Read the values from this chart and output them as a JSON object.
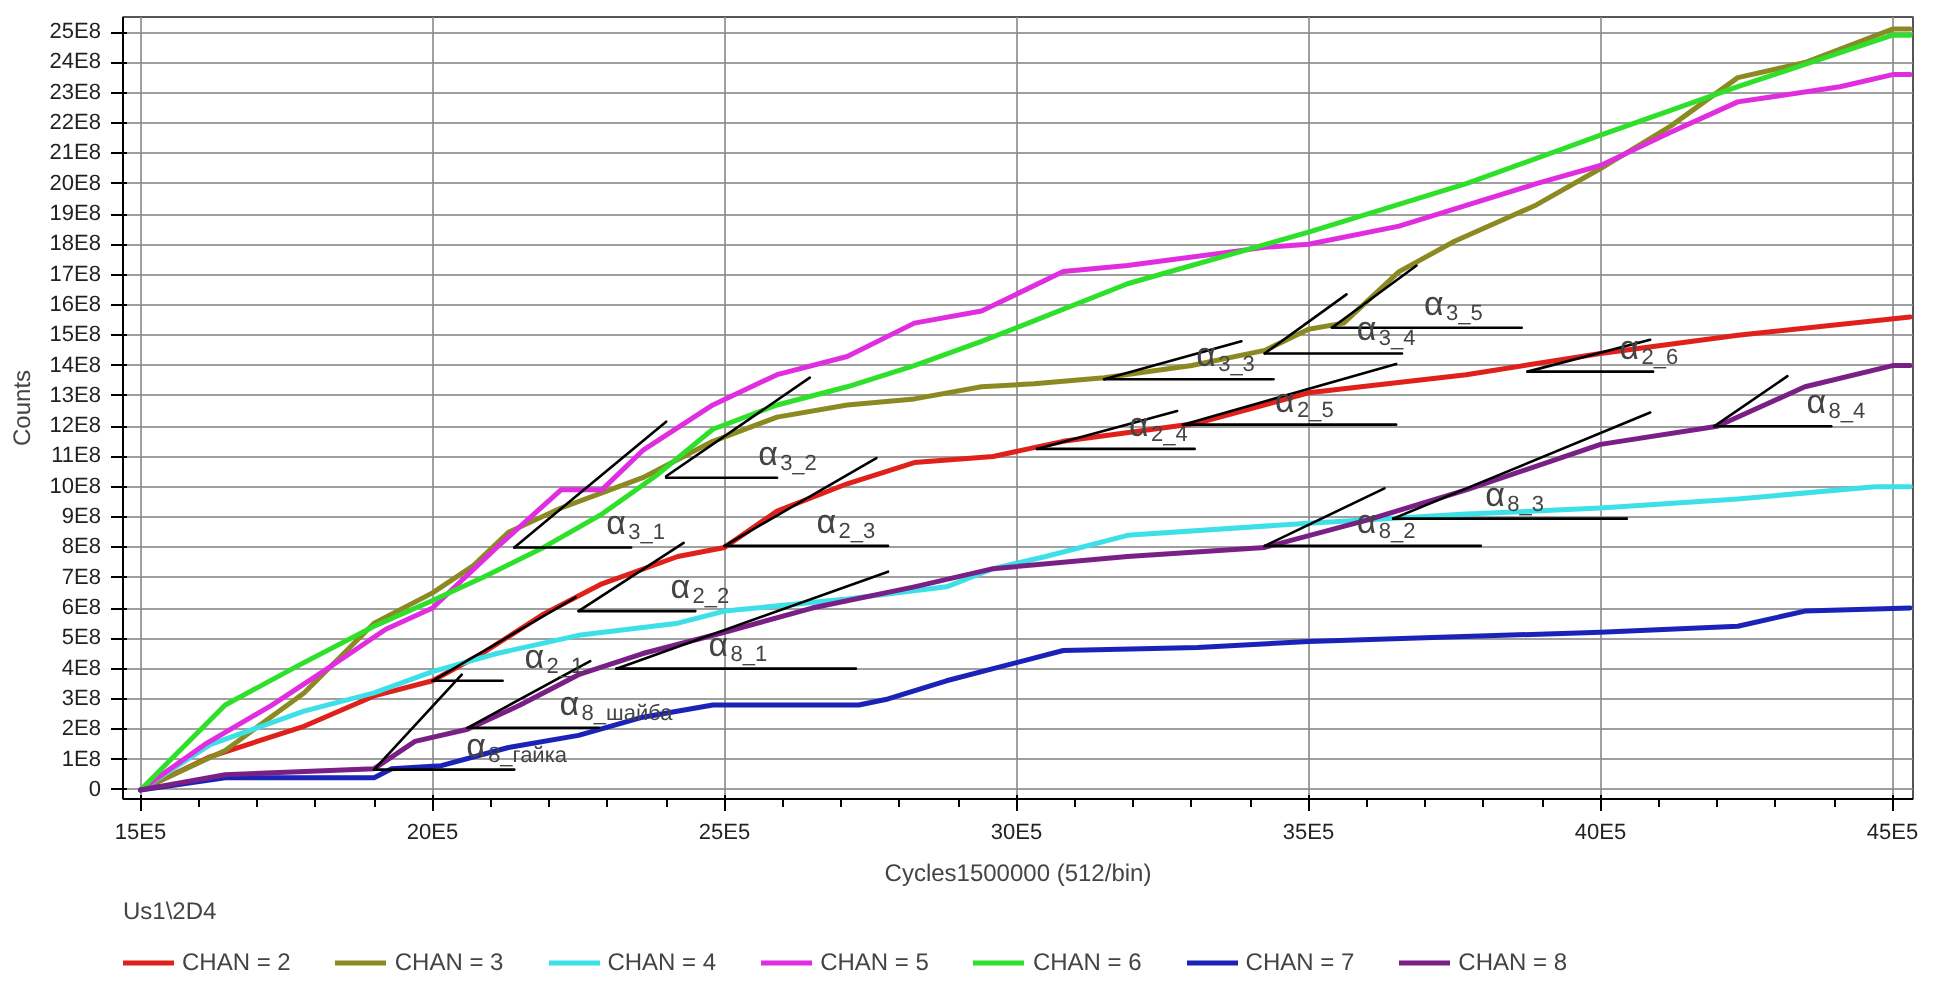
{
  "chart_data": {
    "type": "line",
    "xlabel": "Cycles1500000 (512/bin)",
    "ylabel": "Counts",
    "annotations": [
      "Us1\\2D4",
      {
        "text": "α$_{3_1}$",
        "x": 2140000.0,
        "y": 800000000.0
      },
      {
        "text": "α$_{3_2}$",
        "x": 2400000.0,
        "y": 1030000000.0
      },
      {
        "text": "α$_{2_3}$",
        "x": 2500000.0,
        "y": 805000000.0
      },
      {
        "text": "α$_{2_2}$",
        "x": 2250000.0,
        "y": 590000000.0
      },
      {
        "text": "α$_{2_1}$",
        "x": 2000000.0,
        "y": 360000000.0
      },
      {
        "text": "α$_{8_шайба}$",
        "x": 2060000.0,
        "y": 205000000.0
      },
      {
        "text": "α$_{8_гайка}$",
        "x": 1900000.0,
        "y": 67000000.0
      },
      {
        "text": "α$_{8_1}$",
        "x": 2315000.0,
        "y": 400000000.0
      },
      {
        "text": "α$_{3_3}$",
        "x": 3150000.0,
        "y": 1355000000.0
      },
      {
        "text": "α$_{3_4}$",
        "x": 3425000.0,
        "y": 1440000000.0
      },
      {
        "text": "α$_{3_5}$",
        "x": 3540000.0,
        "y": 1525000000.0
      },
      {
        "text": "α$_{2_4}$",
        "x": 3035000.0,
        "y": 1125000000.0
      },
      {
        "text": "α$_{2_5}$",
        "x": 3285000.0,
        "y": 1205000000.0
      },
      {
        "text": "α$_{2_6}$",
        "x": 3875000.0,
        "y": 1380000000.0
      },
      {
        "text": "α$_{8_2}$",
        "x": 3425000.0,
        "y": 805000000.0
      },
      {
        "text": "α$_{8_3}$",
        "x": 3645000.0,
        "y": 895000000.0
      },
      {
        "text": "α$_{8_4}$",
        "x": 4195000.0,
        "y": 1200000000.0
      }
    ],
    "xlim": [
      1470000.0,
      4535000.0
    ],
    "ylim": [
      -30000000.0,
      2550000000.0
    ],
    "xticks": [
      {
        "value": 1500000.0,
        "label": "15E5"
      },
      {
        "value": 1600000.0,
        "label": null
      },
      {
        "value": 1700000.0,
        "label": null
      },
      {
        "value": 1800000.0,
        "label": null
      },
      {
        "value": 1900000.0,
        "label": null
      },
      {
        "value": 2000000.0,
        "label": "20E5"
      },
      {
        "value": 2100000.0,
        "label": null
      },
      {
        "value": 2200000.0,
        "label": null
      },
      {
        "value": 2300000.0,
        "label": null
      },
      {
        "value": 2400000.0,
        "label": null
      },
      {
        "value": 2500000.0,
        "label": "25E5"
      },
      {
        "value": 2600000.0,
        "label": null
      },
      {
        "value": 2700000.0,
        "label": null
      },
      {
        "value": 2800000.0,
        "label": null
      },
      {
        "value": 2900000.0,
        "label": null
      },
      {
        "value": 3000000.0,
        "label": "30E5"
      },
      {
        "value": 3100000.0,
        "label": null
      },
      {
        "value": 3200000.0,
        "label": null
      },
      {
        "value": 3300000.0,
        "label": null
      },
      {
        "value": 3400000.0,
        "label": null
      },
      {
        "value": 3500000.0,
        "label": "35E5"
      },
      {
        "value": 3600000.0,
        "label": null
      },
      {
        "value": 3700000.0,
        "label": null
      },
      {
        "value": 3800000.0,
        "label": null
      },
      {
        "value": 3900000.0,
        "label": null
      },
      {
        "value": 4000000.0,
        "label": "40E5"
      },
      {
        "value": 4100000.0,
        "label": null
      },
      {
        "value": 4200000.0,
        "label": null
      },
      {
        "value": 4300000.0,
        "label": null
      },
      {
        "value": 4400000.0,
        "label": null
      },
      {
        "value": 4500000.0,
        "label": "45E5"
      }
    ],
    "yticks": [
      0,
      {
        "value": 100000000.0,
        "label": "1E8"
      },
      {
        "value": 200000000.0,
        "label": "2E8"
      },
      {
        "value": 300000000.0,
        "label": "3E8"
      },
      {
        "value": 400000000.0,
        "label": "4E8"
      },
      {
        "value": 500000000.0,
        "label": "5E8"
      },
      {
        "value": 600000000.0,
        "label": "6E8"
      },
      {
        "value": 700000000.0,
        "label": "7E8"
      },
      {
        "value": 800000000.0,
        "label": "8E8"
      },
      {
        "value": 900000000.0,
        "label": "9E8"
      },
      {
        "value": 1000000000.0,
        "label": "10E8"
      },
      {
        "value": 1100000000.0,
        "label": "11E8"
      },
      {
        "value": 1200000000.0,
        "label": "12E8"
      },
      {
        "value": 1300000000.0,
        "label": "13E8"
      },
      {
        "value": 1400000000.0,
        "label": "14E8"
      },
      {
        "value": 1500000000.0,
        "label": "15E8"
      },
      {
        "value": 1600000000.0,
        "label": "16E8"
      },
      {
        "value": 1700000000.0,
        "label": "17E8"
      },
      {
        "value": 1800000000.0,
        "label": "18E8"
      },
      {
        "value": 1900000000.0,
        "label": "19E8"
      },
      {
        "value": 2000000000.0,
        "label": "20E8"
      },
      {
        "value": 2100000000.0,
        "label": "21E8"
      },
      {
        "value": 2200000000.0,
        "label": "22E8"
      },
      {
        "value": 2300000000.0,
        "label": "23E8"
      },
      {
        "value": 2400000000.0,
        "label": "24E8"
      },
      {
        "value": 2500000000.0,
        "label": "25E8"
      }
    ],
    "grid": true,
    "legend": "bottom",
    "marker": "none",
    "line_style": "solid",
    "series": [
      {
        "name": "CHAN = 2",
        "color": "#e0201b",
        "x": [
          1500000.0,
          1620000.0,
          1780000.0,
          1900000.0,
          2000000.0,
          2085000.0,
          2190000.0,
          2290000.0,
          2420000.0,
          2500000.0,
          2590000.0,
          2710000.0,
          2825000.0,
          2960000.0,
          3080000.0,
          3310000.0,
          3500000.0,
          3770000.0,
          4000000.0,
          4235000.0,
          4530000.0
        ],
        "values": [
          0,
          110000000.0,
          210000000.0,
          310000000.0,
          360000000.0,
          450000000.0,
          580000000.0,
          680000000.0,
          770000000.0,
          800000000.0,
          920000000.0,
          1010000000.0,
          1080000000.0,
          1100000000.0,
          1150000000.0,
          1210000000.0,
          1310000000.0,
          1370000000.0,
          1440000000.0,
          1500000000.0,
          1560000000.0
        ]
      },
      {
        "name": "CHAN = 3",
        "color": "#8b8a22",
        "x": [
          1500000.0,
          1645000.0,
          1780000.0,
          1900000.0,
          2000000.0,
          2070000.0,
          2130000.0,
          2220000.0,
          2290000.0,
          2360000.0,
          2480000.0,
          2590000.0,
          2710000.0,
          2825000.0,
          2940000.0,
          3030000.0,
          3150000.0,
          3300000.0,
          3425000.0,
          3500000.0,
          3560000.0,
          3655000.0,
          3750000.0,
          3890000.0,
          4000000.0,
          4120000.0,
          4235000.0,
          4350000.0,
          4500000.0,
          4530000.0
        ],
        "values": [
          0,
          130000000.0,
          320000000.0,
          550000000.0,
          650000000.0,
          740000000.0,
          850000000.0,
          930000000.0,
          980000000.0,
          1030000000.0,
          1150000000.0,
          1230000000.0,
          1270000000.0,
          1290000000.0,
          1330000000.0,
          1340000000.0,
          1360000000.0,
          1400000000.0,
          1450000000.0,
          1520000000.0,
          1540000000.0,
          1710000000.0,
          1810000000.0,
          1930000000.0,
          2050000000.0,
          2190000000.0,
          2350000000.0,
          2400000000.0,
          2510000000.0,
          2510000000.0
        ]
      },
      {
        "name": "CHAN = 4",
        "color": "#3ee0e8",
        "x": [
          1500000.0,
          1620000.0,
          1780000.0,
          1900000.0,
          2000000.0,
          2110000.0,
          2250000.0,
          2420000.0,
          2500000.0,
          2710000.0,
          2880000.0,
          2960000.0,
          3050000.0,
          3190000.0,
          3500000.0,
          3770000.0,
          4000000.0,
          4235000.0,
          4470000.0,
          4530000.0
        ],
        "values": [
          0,
          150000000.0,
          260000000.0,
          320000000.0,
          390000000.0,
          450000000.0,
          510000000.0,
          550000000.0,
          590000000.0,
          630000000.0,
          670000000.0,
          730000000.0,
          770000000.0,
          840000000.0,
          880000000.0,
          910000000.0,
          930000000.0,
          960000000.0,
          1000000000.0,
          1000000000.0
        ]
      },
      {
        "name": "CHAN = 5",
        "color": "#e02de0",
        "x": [
          1500000.0,
          1610000.0,
          1725000.0,
          1820000.0,
          1920000.0,
          2000000.0,
          2110000.0,
          2220000.0,
          2290000.0,
          2360000.0,
          2480000.0,
          2590000.0,
          2710000.0,
          2825000.0,
          2940000.0,
          3080000.0,
          3190000.0,
          3425000.0,
          3500000.0,
          3655000.0,
          3890000.0,
          4000000.0,
          4120000.0,
          4235000.0,
          4410000.0,
          4500000.0,
          4530000.0
        ],
        "values": [
          0,
          150000000.0,
          280000000.0,
          400000000.0,
          530000000.0,
          600000000.0,
          800000000.0,
          990000000.0,
          990000000.0,
          1120000000.0,
          1270000000.0,
          1370000000.0,
          1430000000.0,
          1540000000.0,
          1580000000.0,
          1710000000.0,
          1730000000.0,
          1790000000.0,
          1800000000.0,
          1860000000.0,
          2000000000.0,
          2060000000.0,
          2170000000.0,
          2270000000.0,
          2320000000.0,
          2360000000.0,
          2360000000.0
        ]
      },
      {
        "name": "CHAN = 6",
        "color": "#2ee02a",
        "x": [
          1500000.0,
          1645000.0,
          1770000.0,
          1900000.0,
          2000000.0,
          2085000.0,
          2190000.0,
          2290000.0,
          2385000.0,
          2480000.0,
          2590000.0,
          2710000.0,
          2825000.0,
          2940000.0,
          3020000.0,
          3190000.0,
          3500000.0,
          3770000.0,
          4000000.0,
          4235000.0,
          4500000.0,
          4530000.0
        ],
        "values": [
          0,
          280000000.0,
          410000000.0,
          540000000.0,
          625000000.0,
          700000000.0,
          800000000.0,
          910000000.0,
          1040000000.0,
          1190000000.0,
          1270000000.0,
          1330000000.0,
          1400000000.0,
          1480000000.0,
          1540000000.0,
          1670000000.0,
          1840000000.0,
          2000000000.0,
          2160000000.0,
          2320000000.0,
          2490000000.0,
          2490000000.0
        ]
      },
      {
        "name": "CHAN = 7",
        "color": "#1a22b8",
        "x": [
          1500000.0,
          1645000.0,
          1900000.0,
          1930000.0,
          2015000.0,
          2130000.0,
          2250000.0,
          2360000.0,
          2480000.0,
          2730000.0,
          2780000.0,
          2880000.0,
          2960000.0,
          3080000.0,
          3310000.0,
          3500000.0,
          4000000.0,
          4235000.0,
          4350000.0,
          4530000.0
        ],
        "values": [
          0,
          40000000.0,
          40000000.0,
          70000000.0,
          80000000.0,
          140000000.0,
          180000000.0,
          240000000.0,
          280000000.0,
          280000000.0,
          300000000.0,
          360000000.0,
          400000000.0,
          460000000.0,
          470000000.0,
          490000000.0,
          520000000.0,
          540000000.0,
          590000000.0,
          600000000.0
        ]
      },
      {
        "name": "CHAN = 8",
        "color": "#7a1f86",
        "x": [
          1500000.0,
          1645000.0,
          1900000.0,
          1970000.0,
          2060000.0,
          2150000.0,
          2250000.0,
          2360000.0,
          2500000.0,
          2650000.0,
          2825000.0,
          2960000.0,
          3190000.0,
          3425000.0,
          3600000.0,
          3770000.0,
          4000000.0,
          4200000.0,
          4350000.0,
          4500000.0,
          4530000.0
        ],
        "values": [
          0,
          50000000.0,
          70000000.0,
          160000000.0,
          200000000.0,
          280000000.0,
          380000000.0,
          450000000.0,
          520000000.0,
          600000000.0,
          670000000.0,
          730000000.0,
          770000000.0,
          800000000.0,
          890000000.0,
          990000000.0,
          1140000000.0,
          1200000000.0,
          1330000000.0,
          1400000000.0,
          1400000000.0
        ]
      },
      {
        "type": "line",
        "color": "#000000",
        "x": [
          2140000.0,
          2400000.0,
          null,
          2400000.0,
          2646000.0,
          null,
          2500000.0,
          2760000.0,
          null,
          2250000.0,
          2430000.0,
          null,
          2000000.0,
          2245000.0,
          null,
          1900000.0,
          2050000.0,
          null,
          2060000.0,
          2270000.0,
          null,
          2315000.0,
          2780000.0,
          null,
          3150000.0,
          3385000.0,
          null,
          3425000.0,
          3565000.0,
          null,
          3540000.0,
          3685000.0,
          null,
          3035000.0,
          3275000.0,
          null,
          3285000.0,
          3650000.0,
          null,
          3875000.0,
          4085000.0,
          null,
          3425000.0,
          3630000.0,
          null,
          3645000.0,
          4085000.0,
          null,
          4195000.0,
          4320000.0
        ],
        "values": [
          800000000.0,
          1215000000.0,
          null,
          1035000000.0,
          1360000000.0,
          null,
          805000000.0,
          1095000000.0,
          null,
          590000000.0,
          815000000.0,
          null,
          360000000.0,
          635000000.0,
          null,
          67000000.0,
          380000000.0,
          null,
          205000000.0,
          425000000.0,
          null,
          400000000.0,
          720000000.0,
          null,
          1355000000.0,
          1480000000.0,
          null,
          1440000000.0,
          1635000000.0,
          null,
          1525000000.0,
          1730000000.0,
          null,
          1125000000.0,
          1250000000.0,
          null,
          1205000000.0,
          1405000000.0,
          null,
          1380000000.0,
          1485000000.0,
          null,
          805000000.0,
          995000000.0,
          null,
          895000000.0,
          1245000000.0,
          null,
          1200000000.0,
          1365000000.0
        ]
      },
      {
        "type": "line",
        "color": "#000000",
        "x": [
          2140000.0,
          2340000.0,
          null,
          2400000.0,
          2590000.0,
          null,
          2500000.0,
          2780000.0,
          null,
          2250000.0,
          2450000.0,
          null,
          2000000.0,
          2120000.0,
          null,
          1900000.0,
          2140000.0,
          null,
          2060000.0,
          2285000.0,
          null,
          2315000.0,
          2725000.0,
          null,
          3150000.0,
          3440000.0,
          null,
          3425000.0,
          3660000.0,
          null,
          3540000.0,
          3865000.0,
          null,
          3035000.0,
          3305000.0,
          null,
          3285000.0,
          3650000.0,
          null,
          3875000.0,
          4090000.0,
          null,
          3425000.0,
          3795000.0,
          null,
          3645000.0,
          4045000.0,
          null,
          4195000.0,
          4395000.0
        ],
        "values": [
          800000000.0,
          800000000.0,
          null,
          1030000000.0,
          1030000000.0,
          null,
          805000000.0,
          805000000.0,
          null,
          590000000.0,
          590000000.0,
          null,
          360000000.0,
          360000000.0,
          null,
          67000000.0,
          67000000.0,
          null,
          205000000.0,
          205000000.0,
          null,
          400000000.0,
          400000000.0,
          null,
          1355000000.0,
          1355000000.0,
          null,
          1440000000.0,
          1440000000.0,
          null,
          1525000000.0,
          1525000000.0,
          null,
          1125000000.0,
          1125000000.0,
          null,
          1205000000.0,
          1205000000.0,
          null,
          1380000000.0,
          1380000000.0,
          null,
          805000000.0,
          805000000.0,
          null,
          895000000.0,
          895000000.0,
          null,
          1200000000.0,
          1200000000.0
        ]
      }
    ]
  }
}
